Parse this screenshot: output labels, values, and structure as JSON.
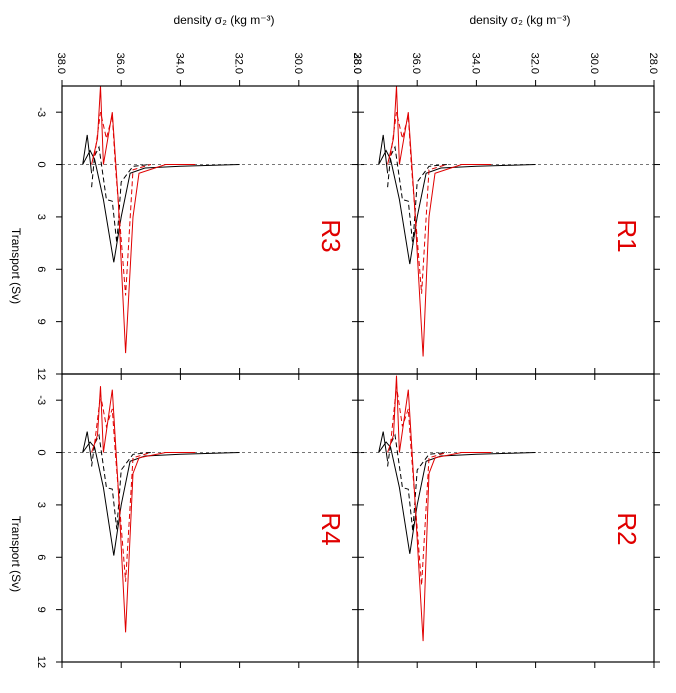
{
  "chart_data": [
    {
      "type": "line",
      "label": "R3",
      "xlabel": "density σ₂ (kg m⁻³)",
      "ylabel": "Transport (Sv)",
      "xlim": [
        38,
        28
      ],
      "ylim": [
        -4.5,
        12
      ],
      "hline": 0,
      "xticks": [
        {
          "value": 38,
          "label": "38.0"
        },
        {
          "value": 36,
          "label": "36.0"
        },
        {
          "value": 34,
          "label": "34.0"
        },
        {
          "value": 32,
          "label": "32.0"
        },
        {
          "value": 30,
          "label": "30.0"
        },
        {
          "value": 28,
          "label": "28.0"
        }
      ],
      "yticks": [
        -3,
        0,
        3,
        6,
        9,
        12
      ],
      "series": [
        {
          "color": "#000000",
          "dash": false,
          "x": [
            37.0,
            37.15,
            37.3,
            37.05,
            36.9,
            36.6,
            36.25,
            36.0,
            35.7,
            35.2,
            34.0,
            33.0,
            32.0
          ],
          "values": [
            0.5,
            -1.7,
            0,
            -0.8,
            -0.3,
            2,
            5.6,
            3,
            0.5,
            0.2,
            0.1,
            0.05,
            0
          ]
        },
        {
          "color": "#000000",
          "dash": true,
          "x": [
            37.0,
            36.9,
            36.75,
            36.5,
            36.3,
            36.15,
            36.0,
            35.6,
            35.0
          ],
          "values": [
            1.3,
            -0.5,
            -1.0,
            2,
            2.1,
            4.5,
            1,
            0.1,
            0
          ]
        },
        {
          "color": "#e00000",
          "dash": false,
          "x": [
            37.0,
            36.8,
            36.7,
            36.6,
            36.3,
            36.1,
            35.85,
            35.6,
            35.4,
            34.5,
            33.5
          ],
          "values": [
            0,
            -1.5,
            -4.5,
            0,
            -3.0,
            2,
            10.8,
            3,
            0.5,
            0,
            0
          ]
        },
        {
          "color": "#e00000",
          "dash": true,
          "x": [
            36.9,
            36.7,
            36.5,
            36.3,
            36.2,
            35.85,
            35.6,
            35.0
          ],
          "values": [
            -0.5,
            -3,
            -1.5,
            -2.8,
            0,
            7.5,
            0.3,
            0
          ]
        }
      ]
    },
    {
      "type": "line",
      "label": "R1",
      "xlabel": "density σ₂ (kg m⁻³)",
      "xlim": [
        38,
        28
      ],
      "ylim": [
        -4.5,
        12
      ],
      "hline": 0,
      "xticks": [
        {
          "value": 38,
          "label": "38.0"
        },
        {
          "value": 36,
          "label": "36.0"
        },
        {
          "value": 34,
          "label": "34.0"
        },
        {
          "value": 32,
          "label": "32.0"
        },
        {
          "value": 30,
          "label": "30.0"
        },
        {
          "value": 28,
          "label": "28.0"
        }
      ],
      "yticks": [
        -3,
        0,
        3,
        6,
        9,
        12
      ],
      "series": [
        {
          "color": "#000000",
          "dash": false,
          "x": [
            37.0,
            37.15,
            37.3,
            37.05,
            36.9,
            36.6,
            36.25,
            36.0,
            35.7,
            35.2,
            34.0,
            33.0,
            32.0
          ],
          "values": [
            0.5,
            -1.7,
            0,
            -0.8,
            -0.3,
            2,
            5.7,
            3,
            0.5,
            0.2,
            0.1,
            0.05,
            0
          ]
        },
        {
          "color": "#000000",
          "dash": true,
          "x": [
            37.0,
            36.9,
            36.75,
            36.5,
            36.3,
            36.15,
            36.0,
            35.6,
            35.0
          ],
          "values": [
            1.3,
            -0.5,
            -1.0,
            2,
            2.1,
            4.6,
            1,
            0.1,
            0
          ]
        },
        {
          "color": "#e00000",
          "dash": false,
          "x": [
            37.0,
            36.8,
            36.7,
            36.6,
            36.3,
            36.1,
            35.8,
            35.6,
            35.4,
            34.5,
            33.5
          ],
          "values": [
            0,
            -1.5,
            -4.5,
            0,
            -3.0,
            2,
            11.0,
            3,
            0.5,
            0,
            0
          ]
        },
        {
          "color": "#e00000",
          "dash": true,
          "x": [
            36.9,
            36.7,
            36.5,
            36.3,
            36.2,
            35.85,
            35.6,
            35.0
          ],
          "values": [
            -0.5,
            -3,
            -1.5,
            -2.8,
            0,
            7.4,
            0.3,
            0
          ]
        }
      ]
    },
    {
      "type": "line",
      "label": "R4",
      "ylabel": "Transport (Sv)",
      "xlim": [
        38,
        28
      ],
      "ylim": [
        -4.5,
        12
      ],
      "hline": 0,
      "xticks": [
        {
          "value": 38,
          "label": "38.0"
        },
        {
          "value": 36,
          "label": "36.0"
        },
        {
          "value": 34,
          "label": "34.0"
        },
        {
          "value": 32,
          "label": "32.0"
        },
        {
          "value": 30,
          "label": "30.0"
        },
        {
          "value": 28,
          "label": "28.0"
        }
      ],
      "yticks": [
        -3,
        0,
        3,
        6,
        9,
        12
      ],
      "series": [
        {
          "color": "#000000",
          "dash": false,
          "x": [
            37.0,
            37.15,
            37.3,
            37.05,
            36.9,
            36.6,
            36.25,
            36.0,
            35.7,
            35.2,
            34.0,
            33.0,
            32.0
          ],
          "values": [
            0.5,
            -1.2,
            0,
            -0.6,
            -0.3,
            2,
            5.9,
            3,
            0.5,
            0.2,
            0.1,
            0.05,
            0
          ]
        },
        {
          "color": "#000000",
          "dash": true,
          "x": [
            37.0,
            36.9,
            36.75,
            36.5,
            36.3,
            36.15,
            36.0,
            35.6,
            35.0
          ],
          "values": [
            0.8,
            -0.5,
            -1.0,
            2,
            2.1,
            4.4,
            1,
            0.1,
            0
          ]
        },
        {
          "color": "#e00000",
          "dash": false,
          "x": [
            37.0,
            36.8,
            36.7,
            36.6,
            36.3,
            36.1,
            35.85,
            35.6,
            35.4,
            34.5,
            33.5
          ],
          "values": [
            0,
            -1.0,
            -3.8,
            0,
            -3.6,
            2,
            10.3,
            1.2,
            0.3,
            0,
            0
          ]
        },
        {
          "color": "#e00000",
          "dash": true,
          "x": [
            36.9,
            36.7,
            36.5,
            36.3,
            36.2,
            35.85,
            35.6,
            35.0
          ],
          "values": [
            -0.5,
            -3.3,
            -1.5,
            -2.5,
            0,
            7.4,
            0.3,
            0
          ]
        }
      ]
    },
    {
      "type": "line",
      "label": "R2",
      "xlim": [
        38,
        28
      ],
      "ylim": [
        -4.5,
        12
      ],
      "hline": 0,
      "xticks": [
        {
          "value": 38,
          "label": "38.0"
        },
        {
          "value": 36,
          "label": "36.0"
        },
        {
          "value": 34,
          "label": "34.0"
        },
        {
          "value": 32,
          "label": "32.0"
        },
        {
          "value": 30,
          "label": "30.0"
        },
        {
          "value": 28,
          "label": "28.0"
        }
      ],
      "yticks": [
        -3,
        0,
        3,
        6,
        9,
        12
      ],
      "series": [
        {
          "color": "#000000",
          "dash": false,
          "x": [
            37.0,
            37.15,
            37.3,
            37.05,
            36.9,
            36.6,
            36.25,
            36.0,
            35.7,
            35.2,
            34.0,
            33.0,
            32.0
          ],
          "values": [
            0.5,
            -1.2,
            0,
            -0.6,
            -0.3,
            2,
            5.8,
            3,
            0.5,
            0.2,
            0.1,
            0.05,
            0
          ]
        },
        {
          "color": "#000000",
          "dash": true,
          "x": [
            37.0,
            36.9,
            36.75,
            36.5,
            36.3,
            36.15,
            36.0,
            35.6,
            35.0
          ],
          "values": [
            0.8,
            -0.5,
            -1.0,
            2,
            2.1,
            4.5,
            1,
            0.1,
            0
          ]
        },
        {
          "color": "#e00000",
          "dash": false,
          "x": [
            37.0,
            36.8,
            36.7,
            36.6,
            36.3,
            36.1,
            35.8,
            35.6,
            35.4,
            34.5,
            33.5
          ],
          "values": [
            0,
            -1.0,
            -4.4,
            0,
            -3.6,
            2,
            10.8,
            1.2,
            0.3,
            0,
            0
          ]
        },
        {
          "color": "#e00000",
          "dash": true,
          "x": [
            36.9,
            36.7,
            36.5,
            36.3,
            36.2,
            35.85,
            35.6,
            35.0
          ],
          "values": [
            -0.5,
            -3.8,
            -1.5,
            -2.5,
            0,
            7.6,
            0.3,
            0
          ]
        }
      ]
    }
  ]
}
